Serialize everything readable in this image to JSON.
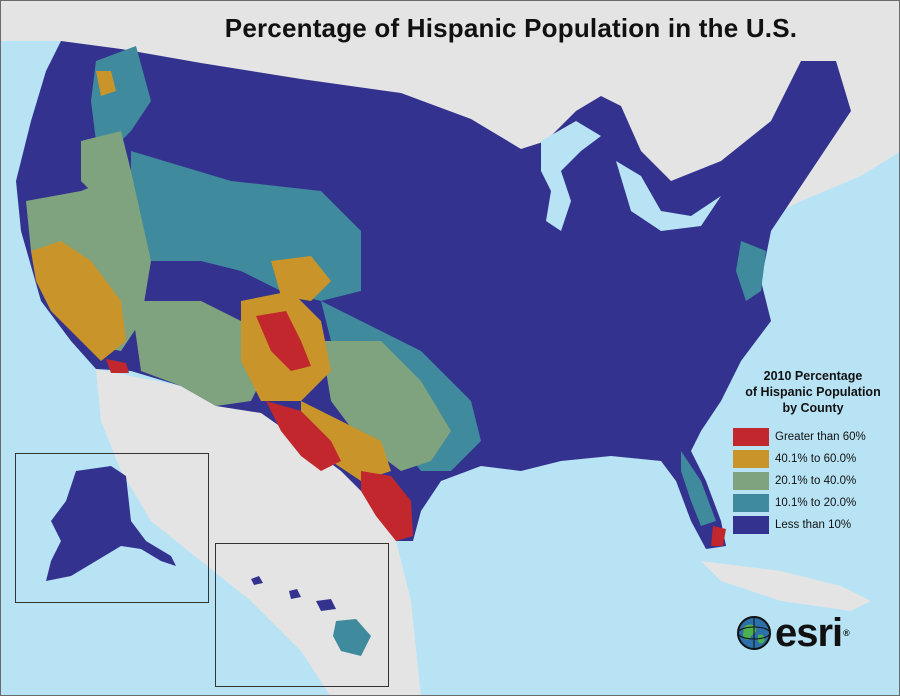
{
  "title": "Percentage of Hispanic Population in the U.S.",
  "legend": {
    "title_lines": [
      "2010 Percentage",
      "of Hispanic Population",
      "by County"
    ],
    "items": [
      {
        "label": "Greater than 60%",
        "color": "#c1272d"
      },
      {
        "label": "40.1% to 60.0%",
        "color": "#c9952a"
      },
      {
        "label": "20.1% to 40.0%",
        "color": "#7fa27f"
      },
      {
        "label": "10.1% to 20.0%",
        "color": "#3f8a9c"
      },
      {
        "label": "Less than 10%",
        "color": "#33338f"
      }
    ]
  },
  "logo": {
    "text": "esri",
    "mark": "®"
  },
  "colors": {
    "water": "#b8e3f5",
    "land": "#e4e4e4",
    "base": "#33338f"
  }
}
